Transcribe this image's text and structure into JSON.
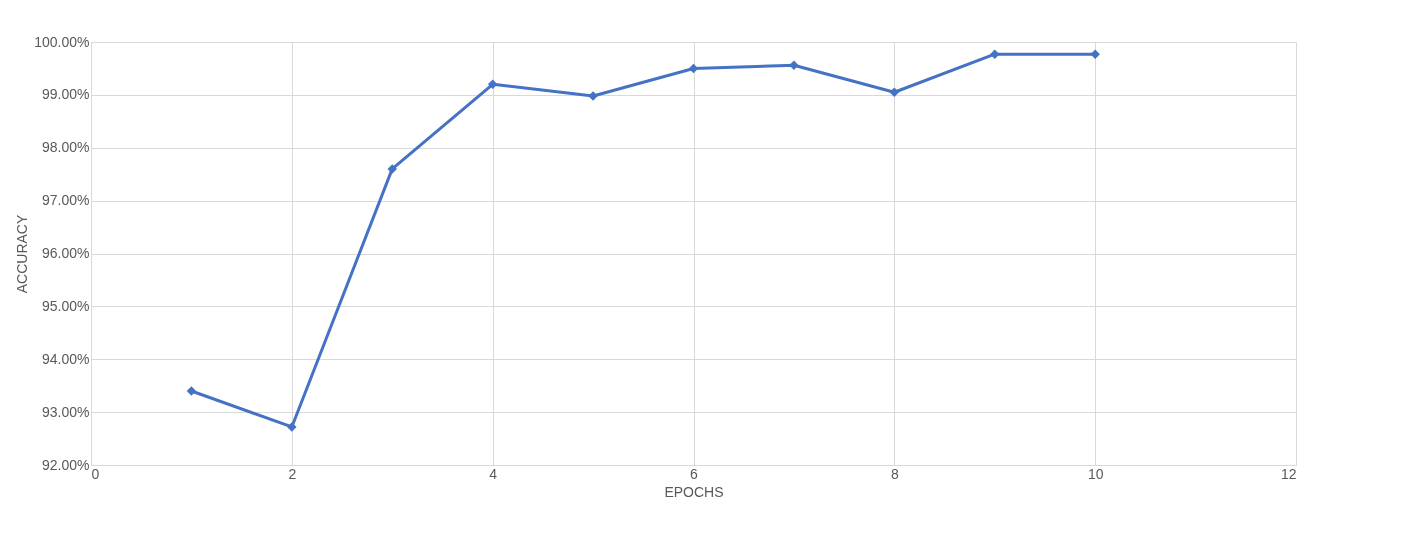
{
  "chart_data": {
    "type": "line",
    "xlabel": "EPOCHS",
    "ylabel": "ACCURACY",
    "x": [
      1,
      2,
      3,
      4,
      5,
      6,
      7,
      8,
      9,
      10
    ],
    "series": [
      {
        "color": "#4472c4",
        "values": [
          93.4,
          92.72,
          97.6,
          99.2,
          98.98,
          99.5,
          99.56,
          99.05,
          99.77,
          99.77
        ]
      }
    ],
    "xlim": [
      0,
      12
    ],
    "xticks": [
      0,
      2,
      4,
      6,
      8,
      10,
      12
    ],
    "ylim": [
      92,
      100
    ],
    "yticks": [
      {
        "value": 92,
        "label": "92.00%"
      },
      {
        "value": 93,
        "label": "93.00%"
      },
      {
        "value": 94,
        "label": "94.00%"
      },
      {
        "value": 95,
        "label": "95.00%"
      },
      {
        "value": 96,
        "label": "96.00%"
      },
      {
        "value": 97,
        "label": "97.00%"
      },
      {
        "value": 98,
        "label": "98.00%"
      },
      {
        "value": 99,
        "label": "99.00%"
      },
      {
        "value": 100,
        "label": "100.00%"
      }
    ],
    "grid": true,
    "marker": "diamond",
    "line_style": "solid"
  }
}
